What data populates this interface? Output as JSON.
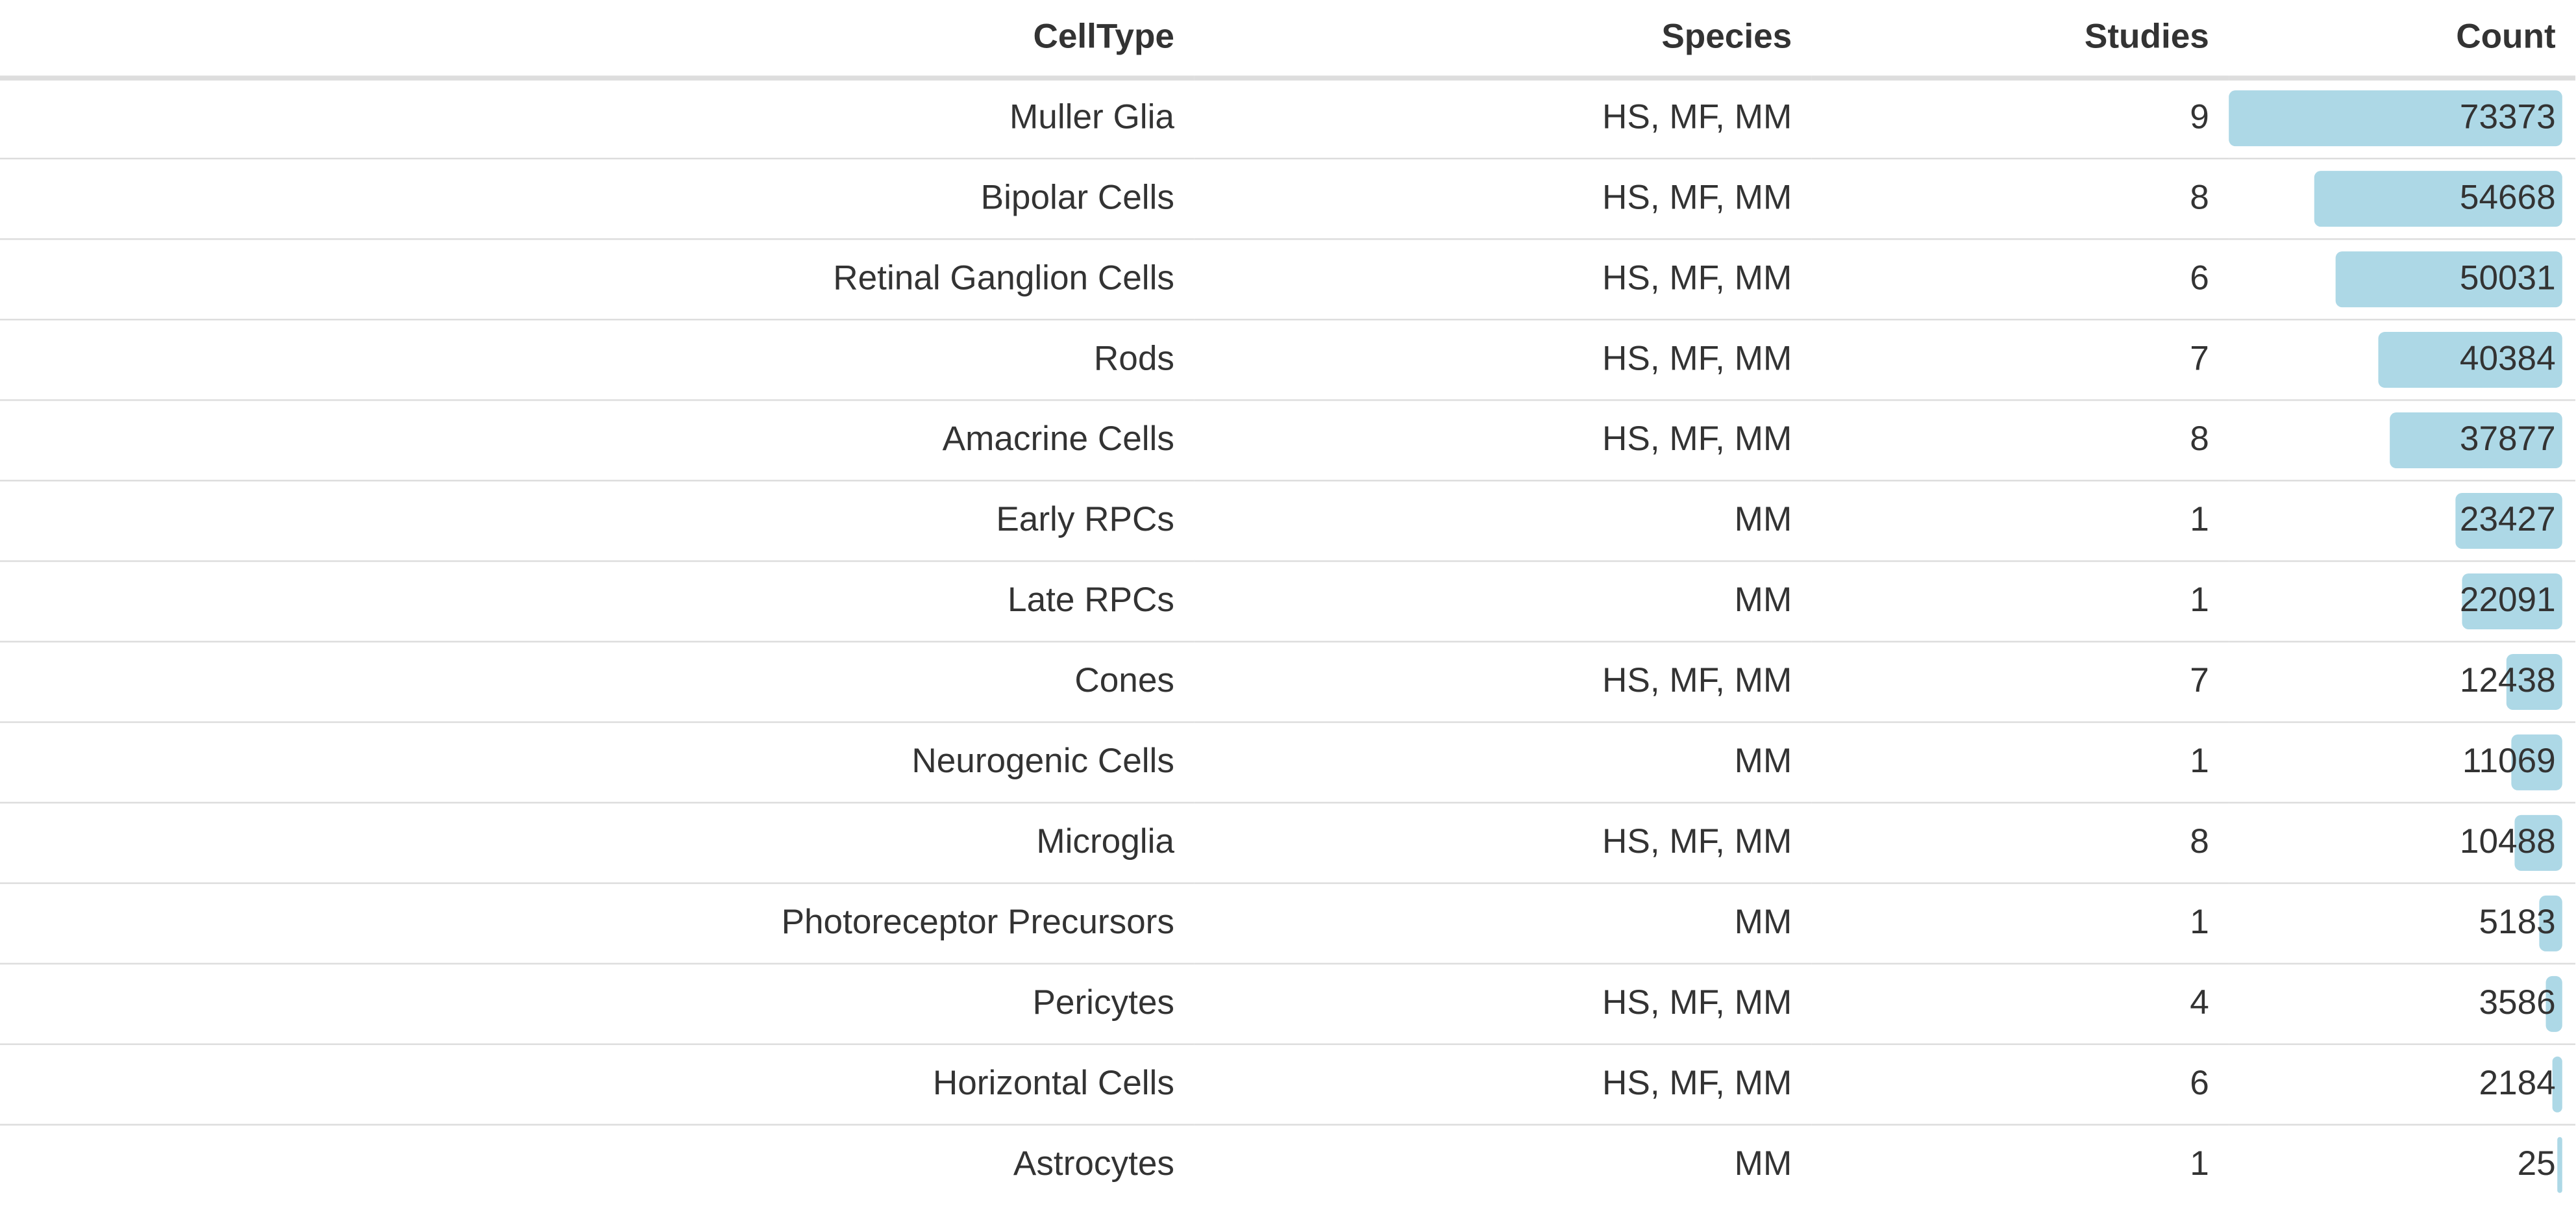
{
  "table": {
    "columns": {
      "celltype": "CellType",
      "species": "Species",
      "studies": "Studies",
      "count": "Count"
    },
    "bar_color": "#add8e6",
    "count_max": 73373,
    "rows": [
      {
        "celltype": "Muller Glia",
        "species": "HS, MF, MM",
        "studies": "9",
        "count": "73373"
      },
      {
        "celltype": "Bipolar Cells",
        "species": "HS, MF, MM",
        "studies": "8",
        "count": "54668"
      },
      {
        "celltype": "Retinal Ganglion Cells",
        "species": "HS, MF, MM",
        "studies": "6",
        "count": "50031"
      },
      {
        "celltype": "Rods",
        "species": "HS, MF, MM",
        "studies": "7",
        "count": "40384"
      },
      {
        "celltype": "Amacrine Cells",
        "species": "HS, MF, MM",
        "studies": "8",
        "count": "37877"
      },
      {
        "celltype": "Early RPCs",
        "species": "MM",
        "studies": "1",
        "count": "23427"
      },
      {
        "celltype": "Late RPCs",
        "species": "MM",
        "studies": "1",
        "count": "22091"
      },
      {
        "celltype": "Cones",
        "species": "HS, MF, MM",
        "studies": "7",
        "count": "12438"
      },
      {
        "celltype": "Neurogenic Cells",
        "species": "MM",
        "studies": "1",
        "count": "11069"
      },
      {
        "celltype": "Microglia",
        "species": "HS, MF, MM",
        "studies": "8",
        "count": "10488"
      },
      {
        "celltype": "Photoreceptor Precursors",
        "species": "MM",
        "studies": "1",
        "count": "5183"
      },
      {
        "celltype": "Pericytes",
        "species": "HS, MF, MM",
        "studies": "4",
        "count": "3586"
      },
      {
        "celltype": "Horizontal Cells",
        "species": "HS, MF, MM",
        "studies": "6",
        "count": "2184"
      },
      {
        "celltype": "Astrocytes",
        "species": "MM",
        "studies": "1",
        "count": "25"
      }
    ]
  }
}
